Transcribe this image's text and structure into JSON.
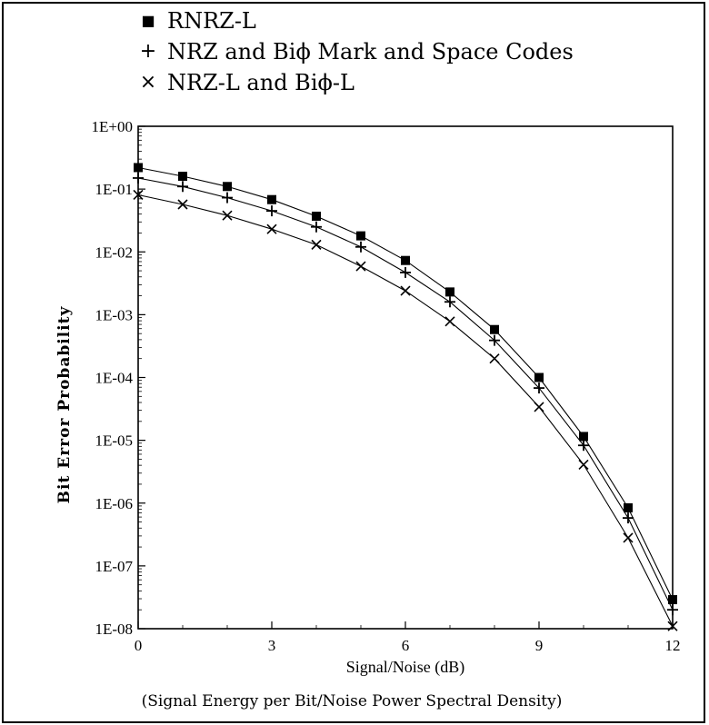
{
  "legend": [
    {
      "marker": "■",
      "label": "RNRZ-L"
    },
    {
      "marker": "+",
      "label": "NRZ and Biϕ Mark and Space Codes"
    },
    {
      "marker": "×",
      "label": "NRZ-L and Biϕ-L"
    }
  ],
  "footnote": "(Signal Energy per Bit/Noise Power Spectral Density)",
  "chart_data": {
    "type": "line",
    "title": "",
    "xlabel": "Signal/Noise (dB)",
    "ylabel": "Bit Error Probability",
    "xlim": [
      0,
      12
    ],
    "ylim": [
      1e-08,
      1
    ],
    "y_scale": "log",
    "x_ticks": [
      0,
      3,
      6,
      9,
      12
    ],
    "y_ticks": [
      "1E+00",
      "1E-01",
      "1E-02",
      "1E-03",
      "1E-04",
      "1E-05",
      "1E-06",
      "1E-07",
      "1E-08"
    ],
    "grid": false,
    "legend_position": "top",
    "x": [
      0,
      1,
      2,
      3,
      4,
      5,
      6,
      7,
      8,
      9,
      10,
      11,
      12
    ],
    "series": [
      {
        "name": "RNRZ-L",
        "marker": "square",
        "values": [
          0.22,
          0.16,
          0.11,
          0.068,
          0.037,
          0.018,
          0.0073,
          0.0023,
          0.00058,
          0.0001,
          1.15e-05,
          8.4e-07,
          2.9e-08
        ]
      },
      {
        "name": "NRZ and Biϕ Mark and Space Codes",
        "marker": "plus",
        "values": [
          0.15,
          0.11,
          0.073,
          0.045,
          0.025,
          0.012,
          0.0047,
          0.0016,
          0.00039,
          6.8e-05,
          8.3e-06,
          5.8e-07,
          2e-08
        ]
      },
      {
        "name": "NRZ-L and Biϕ-L",
        "marker": "cross",
        "values": [
          0.081,
          0.057,
          0.038,
          0.023,
          0.013,
          0.0059,
          0.0024,
          0.00078,
          0.0002,
          3.4e-05,
          4.1e-06,
          2.8e-07,
          1.1e-08
        ]
      }
    ]
  }
}
